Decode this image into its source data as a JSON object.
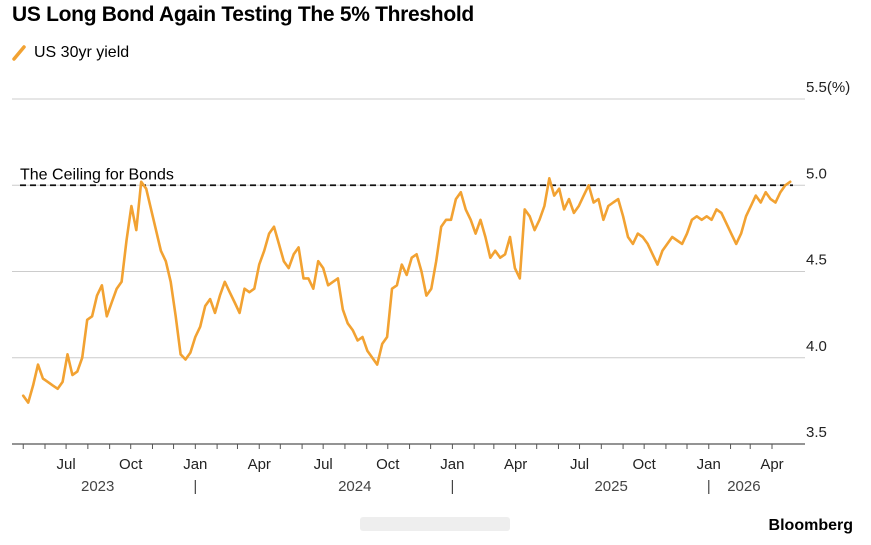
{
  "chart_data": {
    "type": "line",
    "title": "US Long Bond Again Testing The 5% Threshold",
    "xlabel": "",
    "ylabel": "",
    "y_unit": "(%)",
    "ylim": [
      3.5,
      5.5
    ],
    "y_ticks": [
      "5.5",
      "5.0",
      "4.5",
      "4.0",
      "3.5"
    ],
    "grid": true,
    "legend_placement": "top-left",
    "series": [
      {
        "name": "US 30yr yield",
        "color": "#f2a232",
        "points": [
          [
            "2023-05-01",
            3.78
          ],
          [
            "2023-05-08",
            3.74
          ],
          [
            "2023-05-15",
            3.84
          ],
          [
            "2023-05-22",
            3.96
          ],
          [
            "2023-05-29",
            3.88
          ],
          [
            "2023-06-05",
            3.86
          ],
          [
            "2023-06-12",
            3.84
          ],
          [
            "2023-06-19",
            3.82
          ],
          [
            "2023-06-26",
            3.86
          ],
          [
            "2023-07-03",
            4.02
          ],
          [
            "2023-07-10",
            3.9
          ],
          [
            "2023-07-17",
            3.92
          ],
          [
            "2023-07-24",
            4.0
          ],
          [
            "2023-07-31",
            4.22
          ],
          [
            "2023-08-07",
            4.24
          ],
          [
            "2023-08-14",
            4.36
          ],
          [
            "2023-08-21",
            4.42
          ],
          [
            "2023-08-28",
            4.24
          ],
          [
            "2023-09-04",
            4.32
          ],
          [
            "2023-09-11",
            4.4
          ],
          [
            "2023-09-18",
            4.44
          ],
          [
            "2023-09-25",
            4.68
          ],
          [
            "2023-10-02",
            4.88
          ],
          [
            "2023-10-09",
            4.74
          ],
          [
            "2023-10-16",
            5.02
          ],
          [
            "2023-10-23",
            4.98
          ],
          [
            "2023-10-30",
            4.86
          ],
          [
            "2023-11-06",
            4.74
          ],
          [
            "2023-11-13",
            4.62
          ],
          [
            "2023-11-20",
            4.56
          ],
          [
            "2023-11-27",
            4.44
          ],
          [
            "2023-12-04",
            4.24
          ],
          [
            "2023-12-11",
            4.02
          ],
          [
            "2023-12-18",
            3.99
          ],
          [
            "2023-12-25",
            4.03
          ],
          [
            "2024-01-01",
            4.12
          ],
          [
            "2024-01-08",
            4.18
          ],
          [
            "2024-01-15",
            4.3
          ],
          [
            "2024-01-22",
            4.34
          ],
          [
            "2024-01-29",
            4.26
          ],
          [
            "2024-02-05",
            4.36
          ],
          [
            "2024-02-12",
            4.44
          ],
          [
            "2024-02-19",
            4.38
          ],
          [
            "2024-02-26",
            4.32
          ],
          [
            "2024-03-04",
            4.26
          ],
          [
            "2024-03-11",
            4.4
          ],
          [
            "2024-03-18",
            4.38
          ],
          [
            "2024-03-25",
            4.4
          ],
          [
            "2024-04-01",
            4.54
          ],
          [
            "2024-04-08",
            4.62
          ],
          [
            "2024-04-15",
            4.72
          ],
          [
            "2024-04-22",
            4.76
          ],
          [
            "2024-04-29",
            4.66
          ],
          [
            "2024-05-06",
            4.56
          ],
          [
            "2024-05-13",
            4.52
          ],
          [
            "2024-05-20",
            4.6
          ],
          [
            "2024-05-27",
            4.64
          ],
          [
            "2024-06-03",
            4.46
          ],
          [
            "2024-06-10",
            4.46
          ],
          [
            "2024-06-17",
            4.4
          ],
          [
            "2024-06-24",
            4.56
          ],
          [
            "2024-07-01",
            4.52
          ],
          [
            "2024-07-08",
            4.42
          ],
          [
            "2024-07-15",
            4.44
          ],
          [
            "2024-07-22",
            4.46
          ],
          [
            "2024-07-29",
            4.28
          ],
          [
            "2024-08-05",
            4.2
          ],
          [
            "2024-08-12",
            4.16
          ],
          [
            "2024-08-19",
            4.1
          ],
          [
            "2024-08-26",
            4.12
          ],
          [
            "2024-09-02",
            4.04
          ],
          [
            "2024-09-09",
            4.0
          ],
          [
            "2024-09-16",
            3.96
          ],
          [
            "2024-09-23",
            4.08
          ],
          [
            "2024-09-30",
            4.12
          ],
          [
            "2024-10-07",
            4.4
          ],
          [
            "2024-10-14",
            4.42
          ],
          [
            "2024-10-21",
            4.54
          ],
          [
            "2024-10-28",
            4.48
          ],
          [
            "2024-11-04",
            4.58
          ],
          [
            "2024-11-11",
            4.6
          ],
          [
            "2024-11-18",
            4.5
          ],
          [
            "2024-11-25",
            4.36
          ],
          [
            "2024-12-02",
            4.4
          ],
          [
            "2024-12-09",
            4.56
          ],
          [
            "2024-12-16",
            4.76
          ],
          [
            "2024-12-23",
            4.8
          ],
          [
            "2024-12-30",
            4.8
          ],
          [
            "2025-01-06",
            4.92
          ],
          [
            "2025-01-13",
            4.96
          ],
          [
            "2025-01-20",
            4.86
          ],
          [
            "2025-01-27",
            4.8
          ],
          [
            "2025-02-03",
            4.72
          ],
          [
            "2025-02-10",
            4.8
          ],
          [
            "2025-02-17",
            4.7
          ],
          [
            "2025-02-24",
            4.58
          ],
          [
            "2025-03-03",
            4.62
          ],
          [
            "2025-03-10",
            4.58
          ],
          [
            "2025-03-17",
            4.6
          ],
          [
            "2025-03-24",
            4.7
          ],
          [
            "2025-03-31",
            4.52
          ],
          [
            "2025-04-07",
            4.46
          ],
          [
            "2025-04-14",
            4.86
          ],
          [
            "2025-04-21",
            4.82
          ],
          [
            "2025-04-28",
            4.74
          ],
          [
            "2025-05-05",
            4.8
          ],
          [
            "2025-05-12",
            4.88
          ],
          [
            "2025-05-19",
            5.04
          ],
          [
            "2025-05-26",
            4.94
          ],
          [
            "2025-06-02",
            4.98
          ],
          [
            "2025-06-09",
            4.86
          ],
          [
            "2025-06-16",
            4.92
          ],
          [
            "2025-06-23",
            4.84
          ],
          [
            "2025-06-30",
            4.88
          ],
          [
            "2025-07-07",
            4.94
          ],
          [
            "2025-07-14",
            5.0
          ],
          [
            "2025-07-21",
            4.9
          ],
          [
            "2025-07-28",
            4.92
          ],
          [
            "2025-08-04",
            4.8
          ],
          [
            "2025-08-11",
            4.88
          ],
          [
            "2025-08-18",
            4.9
          ],
          [
            "2025-08-25",
            4.92
          ],
          [
            "2025-09-01",
            4.82
          ],
          [
            "2025-09-08",
            4.7
          ],
          [
            "2025-09-15",
            4.66
          ],
          [
            "2025-09-22",
            4.72
          ],
          [
            "2025-09-29",
            4.7
          ],
          [
            "2025-10-06",
            4.66
          ],
          [
            "2025-10-13",
            4.6
          ],
          [
            "2025-10-20",
            4.54
          ],
          [
            "2025-10-27",
            4.62
          ],
          [
            "2025-11-03",
            4.66
          ],
          [
            "2025-11-10",
            4.7
          ],
          [
            "2025-11-17",
            4.68
          ],
          [
            "2025-11-24",
            4.66
          ],
          [
            "2025-12-01",
            4.72
          ],
          [
            "2025-12-08",
            4.8
          ],
          [
            "2025-12-15",
            4.82
          ],
          [
            "2025-12-22",
            4.8
          ],
          [
            "2025-12-29",
            4.82
          ],
          [
            "2026-01-05",
            4.8
          ],
          [
            "2026-01-12",
            4.86
          ],
          [
            "2026-01-19",
            4.84
          ],
          [
            "2026-01-26",
            4.78
          ],
          [
            "2026-02-02",
            4.72
          ],
          [
            "2026-02-09",
            4.66
          ],
          [
            "2026-02-16",
            4.72
          ],
          [
            "2026-02-23",
            4.82
          ],
          [
            "2026-03-02",
            4.88
          ],
          [
            "2026-03-09",
            4.94
          ],
          [
            "2026-03-16",
            4.9
          ],
          [
            "2026-03-23",
            4.96
          ],
          [
            "2026-03-30",
            4.92
          ],
          [
            "2026-04-06",
            4.9
          ],
          [
            "2026-04-13",
            4.96
          ],
          [
            "2026-04-20",
            5.0
          ],
          [
            "2026-04-27",
            5.02
          ]
        ]
      }
    ],
    "reference_lines": [
      {
        "value": 5.0,
        "label": "The Ceiling for Bonds",
        "style": "dashed"
      }
    ],
    "x_ticks": [
      {
        "date": "2023-07-01",
        "label": "Jul"
      },
      {
        "date": "2023-10-01",
        "label": "Oct"
      },
      {
        "date": "2024-01-01",
        "label": "Jan"
      },
      {
        "date": "2024-04-01",
        "label": "Apr"
      },
      {
        "date": "2024-07-01",
        "label": "Jul"
      },
      {
        "date": "2024-10-01",
        "label": "Oct"
      },
      {
        "date": "2025-01-01",
        "label": "Jan"
      },
      {
        "date": "2025-04-01",
        "label": "Apr"
      },
      {
        "date": "2025-07-01",
        "label": "Jul"
      },
      {
        "date": "2025-10-01",
        "label": "Oct"
      },
      {
        "date": "2026-01-01",
        "label": "Jan"
      },
      {
        "date": "2026-04-01",
        "label": "Apr"
      }
    ],
    "year_labels": [
      {
        "date": "2023-08-15",
        "label": "2023"
      },
      {
        "date": "2024-08-15",
        "label": "2024"
      },
      {
        "date": "2025-08-15",
        "label": "2025"
      },
      {
        "date": "2026-02-20",
        "label": "2026"
      }
    ],
    "year_dividers": [
      "2024-01-01",
      "2025-01-01",
      "2026-01-01"
    ]
  },
  "source": "Bloomberg"
}
